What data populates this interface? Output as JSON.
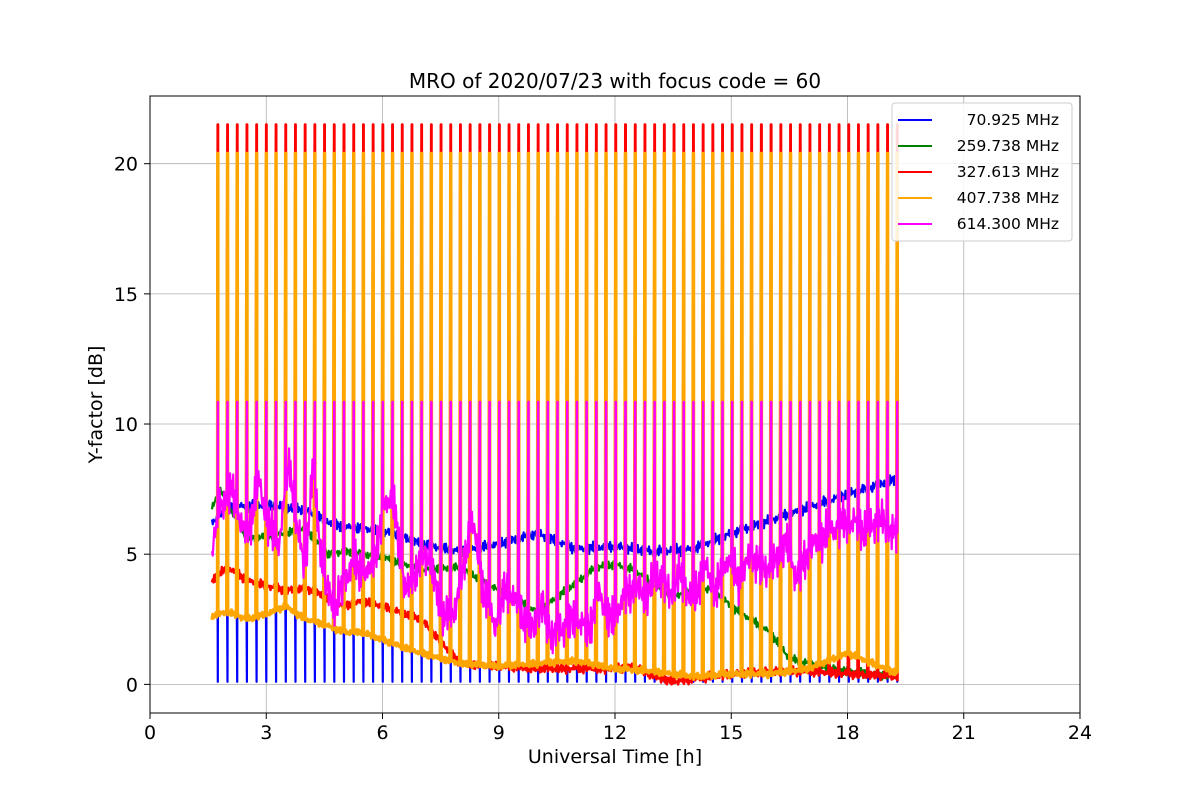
{
  "chart_data": {
    "type": "line",
    "title": "MRO of 2020/07/23 with focus code = 60",
    "xlabel": "Universal Time [h]",
    "ylabel": "Y-factor [dB]",
    "xlim": [
      0,
      24
    ],
    "ylim": [
      -1.1,
      22.6
    ],
    "xticks": [
      0,
      3,
      6,
      9,
      12,
      15,
      18,
      21,
      24
    ],
    "yticks": [
      0,
      5,
      10,
      15,
      20
    ],
    "grid": true,
    "legend_position": "upper-right",
    "cycle": {
      "first_peak_h": 1.75,
      "period_h": 0.2505,
      "count": 71,
      "end_h": 19.3,
      "start_h": 1.6
    },
    "series": [
      {
        "name": " 70.925 MHz",
        "color": "#0000ff",
        "dip": 0.1,
        "baseline": {
          "x": [
            1.6,
            2.0,
            3.0,
            4.0,
            4.8,
            5.5,
            6.3,
            7.0,
            8.0,
            9.0,
            10.0,
            11.0,
            12.0,
            13.0,
            14.0,
            15.0,
            16.0,
            17.0,
            18.0,
            19.3
          ],
          "y": [
            6.2,
            6.8,
            6.9,
            6.7,
            6.1,
            6.0,
            5.8,
            5.4,
            5.1,
            5.4,
            5.8,
            5.2,
            5.3,
            5.1,
            5.2,
            5.8,
            6.3,
            6.8,
            7.3,
            7.9
          ]
        }
      },
      {
        "name": "259.738 MHz",
        "color": "#008000",
        "dip": null,
        "baseline": {
          "x": [
            1.6,
            1.8,
            2.5,
            3.0,
            3.5,
            4.0,
            4.6,
            5.0,
            6.0,
            7.0,
            8.0,
            9.0,
            10.0,
            11.0,
            11.5,
            12.0,
            12.5,
            13.0,
            13.5,
            14.0,
            14.5,
            15.0,
            15.5,
            16.0,
            16.5,
            17.0,
            18.0,
            19.3
          ],
          "y": [
            6.8,
            7.5,
            5.6,
            5.7,
            5.8,
            6.0,
            5.0,
            5.1,
            4.9,
            4.4,
            4.5,
            3.6,
            2.8,
            3.9,
            4.5,
            4.6,
            4.4,
            3.8,
            3.4,
            3.6,
            3.7,
            3.0,
            2.5,
            2.0,
            1.0,
            0.8,
            0.5,
            0.3
          ]
        }
      },
      {
        "name": "327.613 MHz",
        "color": "#ff0000",
        "dip": null,
        "peak": 21.5,
        "baseline": {
          "x": [
            1.6,
            2.0,
            2.5,
            3.0,
            3.5,
            4.0,
            4.5,
            5.0,
            5.5,
            6.0,
            7.0,
            8.0,
            9.0,
            10.0,
            11.0,
            12.0,
            12.5,
            13.0,
            13.5,
            14.0,
            15.0,
            16.0,
            17.0,
            18.0,
            19.3
          ],
          "y": [
            4.0,
            4.5,
            4.0,
            3.8,
            3.6,
            3.7,
            3.4,
            3.0,
            3.2,
            3.0,
            2.5,
            0.8,
            0.7,
            0.6,
            0.6,
            0.6,
            0.7,
            0.3,
            0.1,
            0.2,
            0.4,
            0.5,
            0.5,
            0.4,
            0.3
          ]
        }
      },
      {
        "name": "407.738 MHz",
        "color": "#ffa500",
        "dip": null,
        "peak": 20.4,
        "baseline": {
          "x": [
            1.6,
            2.0,
            2.5,
            3.0,
            3.5,
            4.0,
            4.5,
            5.0,
            5.5,
            6.0,
            7.0,
            8.0,
            9.0,
            10.0,
            11.0,
            12.0,
            13.0,
            14.0,
            15.0,
            16.0,
            17.0,
            18.0,
            18.5,
            19.3
          ],
          "y": [
            2.6,
            2.8,
            2.5,
            2.7,
            3.0,
            2.5,
            2.3,
            2.0,
            2.0,
            1.7,
            1.2,
            0.8,
            0.7,
            0.8,
            0.9,
            0.6,
            0.5,
            0.3,
            0.4,
            0.4,
            0.6,
            1.2,
            0.9,
            0.4
          ]
        }
      },
      {
        "name": "614.300 MHz",
        "color": "#ff00ff",
        "dip": null,
        "peak": 10.85,
        "baseline": {
          "x": [
            1.6,
            1.8,
            2.1,
            2.5,
            2.8,
            3.0,
            3.3,
            3.6,
            3.8,
            4.0,
            4.2,
            4.5,
            4.8,
            5.0,
            5.3,
            5.6,
            5.9,
            6.1,
            6.3,
            6.6,
            6.9,
            7.2,
            7.5,
            7.8,
            8.1,
            8.3,
            8.6,
            8.9,
            9.2,
            9.5,
            9.8,
            10.1,
            10.4,
            10.7,
            11.0,
            11.3,
            11.6,
            11.9,
            12.2,
            12.5,
            12.8,
            13.1,
            13.4,
            13.7,
            14.0,
            14.3,
            14.6,
            14.9,
            15.2,
            15.5,
            15.8,
            16.1,
            16.4,
            16.7,
            17.0,
            17.3,
            17.6,
            17.9,
            18.2,
            18.5,
            18.8,
            19.1,
            19.3
          ],
          "y": [
            5.0,
            6.8,
            7.5,
            5.5,
            7.8,
            6.5,
            5.2,
            8.5,
            6.0,
            4.5,
            8.2,
            3.8,
            3.0,
            4.0,
            4.6,
            4.2,
            5.5,
            7.2,
            6.8,
            3.5,
            4.5,
            5.0,
            2.8,
            2.5,
            4.5,
            6.5,
            3.6,
            2.2,
            3.8,
            3.0,
            2.0,
            3.0,
            1.8,
            2.2,
            2.6,
            2.0,
            3.5,
            2.4,
            3.2,
            3.8,
            3.4,
            4.2,
            3.5,
            4.3,
            3.0,
            4.6,
            3.6,
            4.8,
            4.0,
            5.0,
            4.4,
            4.6,
            5.5,
            4.0,
            5.2,
            5.6,
            5.9,
            6.3,
            6.2,
            5.8,
            6.4,
            6.0,
            5.6
          ]
        }
      }
    ]
  }
}
